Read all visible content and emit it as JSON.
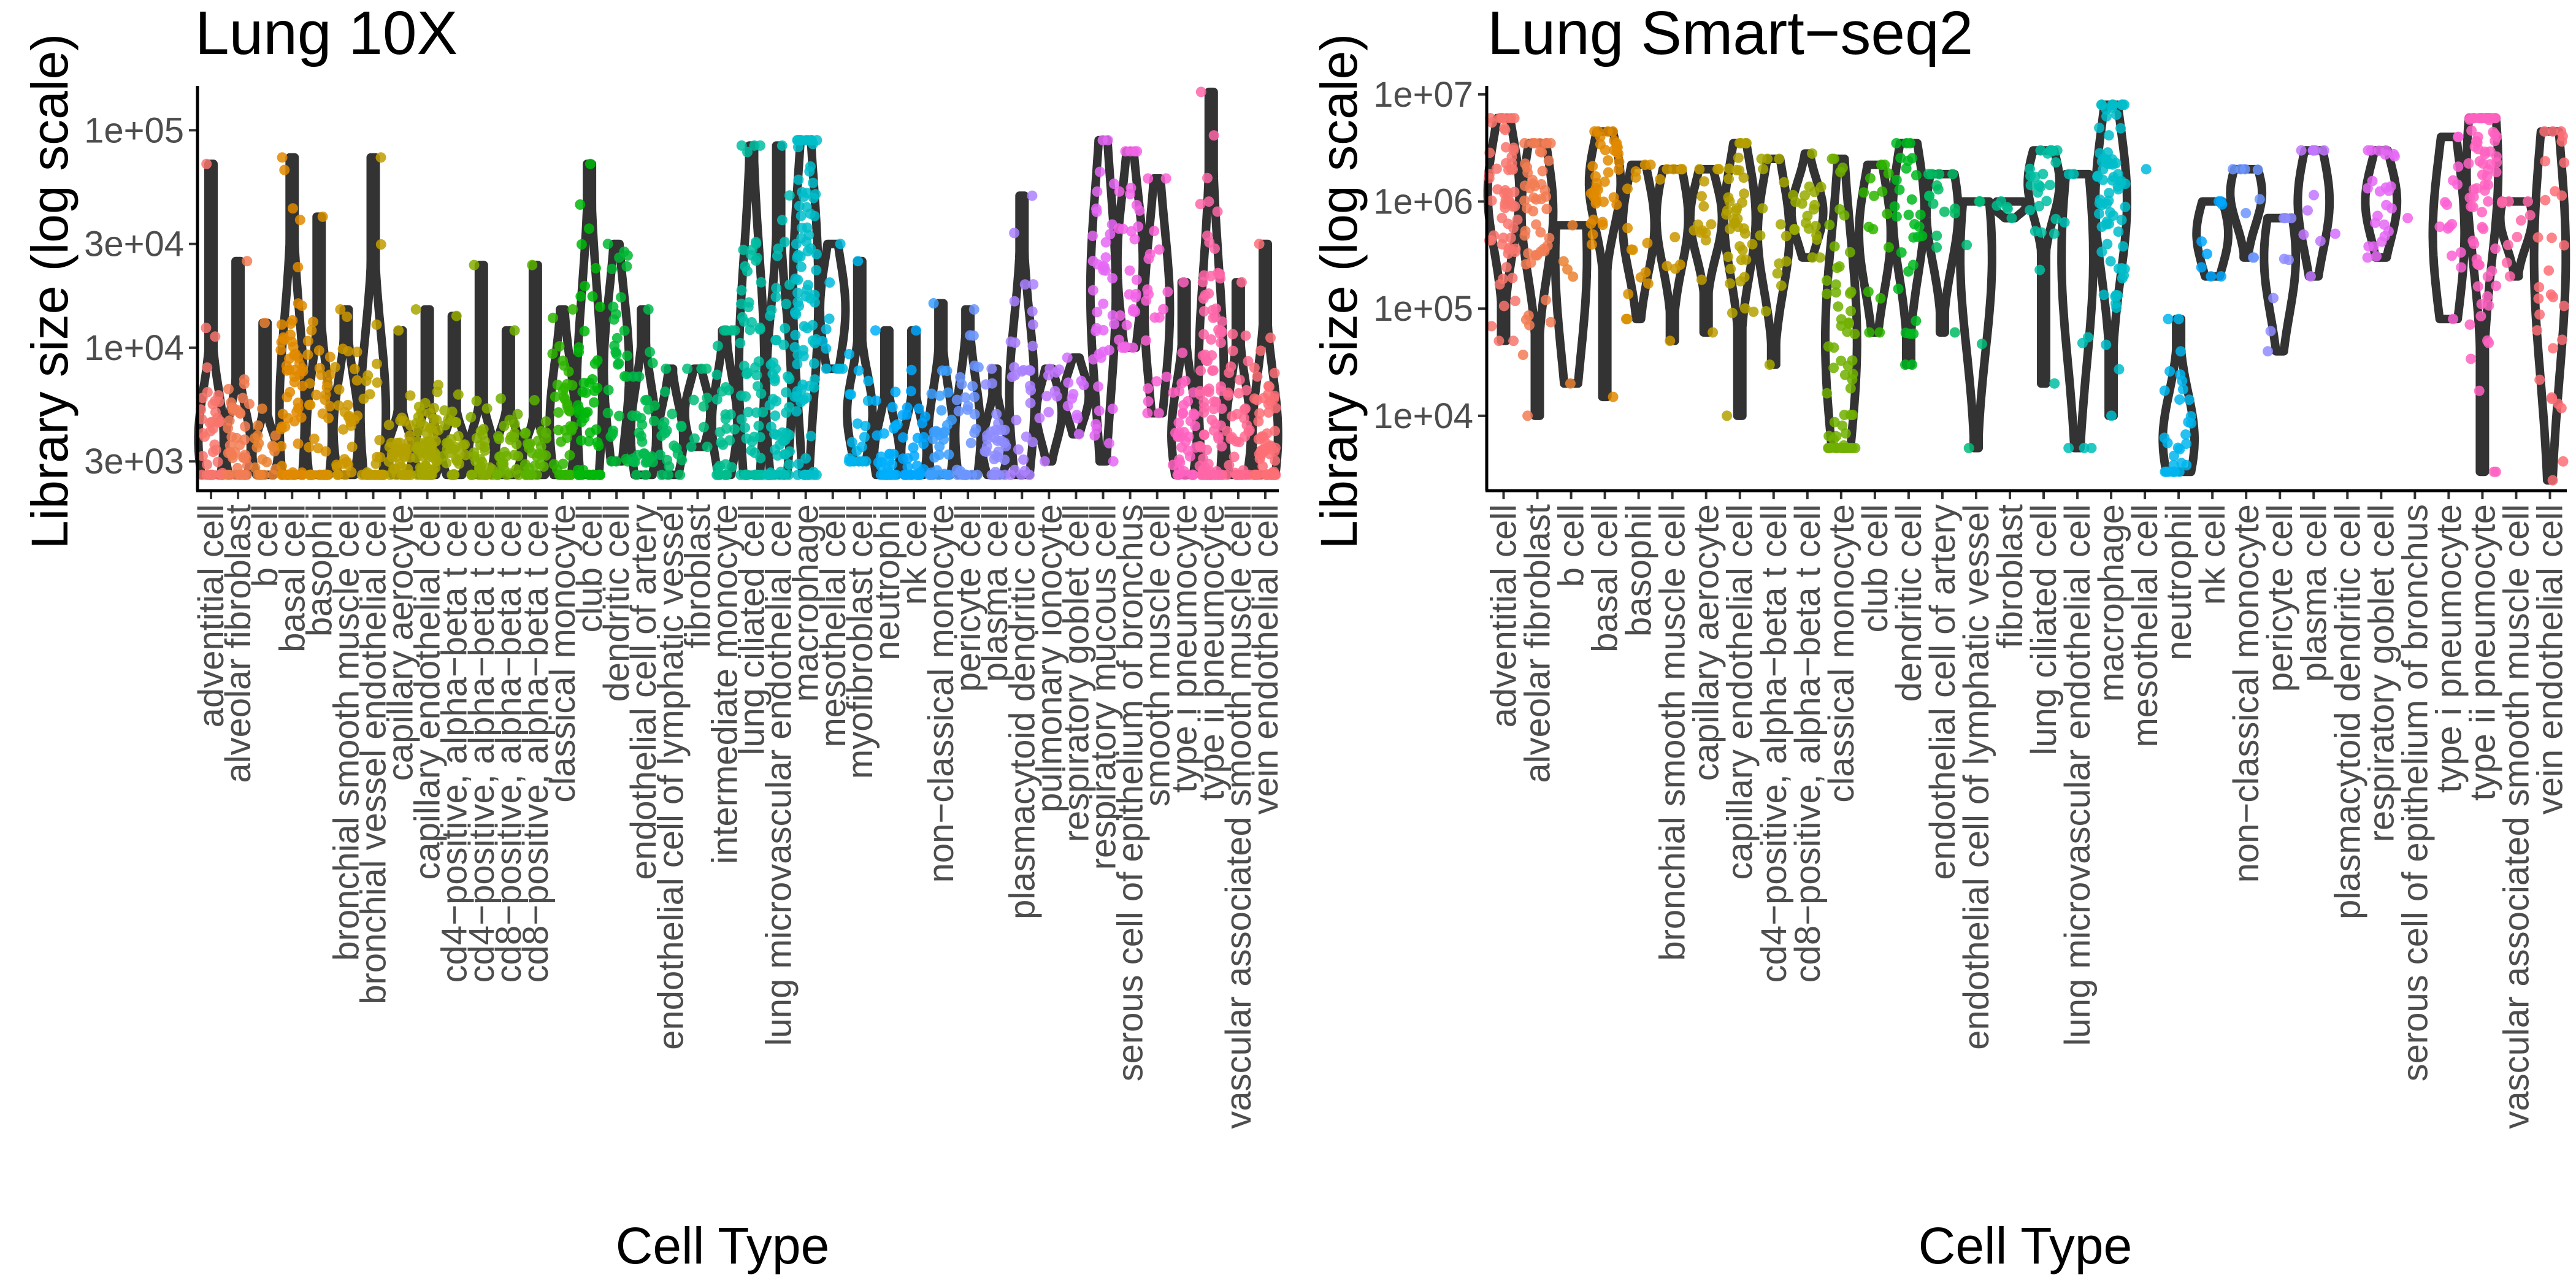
{
  "chart_data": [
    {
      "type": "violin",
      "title": "Lung 10X",
      "xlabel": "Cell Type",
      "ylabel": "Library size (log scale)",
      "yscale": "log",
      "ylim": [
        2200,
        160000
      ],
      "ytick_values": [
        3000,
        10000,
        30000,
        100000
      ],
      "ytick_labels": [
        "3e+03",
        "1e+04",
        "3e+04",
        "1e+05"
      ],
      "grid": false,
      "legend": "none",
      "categories": [
        {
          "name": "adventitial cell",
          "color": "#F8766D",
          "min": 2600,
          "q1": 3000,
          "median": 3800,
          "q3": 6000,
          "max": 70000,
          "n": 40
        },
        {
          "name": "alveolar fibroblast",
          "color": "#F27D53",
          "min": 2600,
          "q1": 3000,
          "median": 3500,
          "q3": 5000,
          "max": 25000,
          "n": 40
        },
        {
          "name": "b cell",
          "color": "#EA8331",
          "min": 2600,
          "q1": 2900,
          "median": 3200,
          "q3": 4000,
          "max": 13000,
          "n": 20
        },
        {
          "name": "basal cell",
          "color": "#E18A00",
          "min": 2600,
          "q1": 3200,
          "median": 5000,
          "q3": 12000,
          "max": 75000,
          "n": 60
        },
        {
          "name": "basophil",
          "color": "#D89000",
          "min": 2600,
          "q1": 3000,
          "median": 4000,
          "q3": 7000,
          "max": 40000,
          "n": 40
        },
        {
          "name": "bronchial smooth muscle cell",
          "color": "#CD9600",
          "min": 2600,
          "q1": 3000,
          "median": 4200,
          "q3": 6000,
          "max": 15000,
          "n": 30
        },
        {
          "name": "bronchial vessel endothelial cell",
          "color": "#C19C00",
          "min": 2600,
          "q1": 3200,
          "median": 5000,
          "q3": 10000,
          "max": 75000,
          "n": 30
        },
        {
          "name": "capillary aerocyte",
          "color": "#B4A100",
          "min": 2600,
          "q1": 2900,
          "median": 3300,
          "q3": 4000,
          "max": 12000,
          "n": 40
        },
        {
          "name": "capillary endothelial cell",
          "color": "#A6A600",
          "min": 2600,
          "q1": 2900,
          "median": 3300,
          "q3": 4200,
          "max": 15000,
          "n": 60
        },
        {
          "name": "cd4-positive, alpha-beta t cell",
          "color": "#96AA00",
          "min": 2600,
          "q1": 2900,
          "median": 3300,
          "q3": 4000,
          "max": 14000,
          "n": 30
        },
        {
          "name": "cd4-positive, alpha-beta t cell",
          "color": "#85AD00",
          "min": 2600,
          "q1": 2900,
          "median": 3300,
          "q3": 4200,
          "max": 24000,
          "n": 30
        },
        {
          "name": "cd8-positive, alpha-beta t cell",
          "color": "#70B000",
          "min": 2600,
          "q1": 2900,
          "median": 3300,
          "q3": 4000,
          "max": 12000,
          "n": 30
        },
        {
          "name": "cd8-positive, alpha-beta t cell",
          "color": "#58B300",
          "min": 2600,
          "q1": 2800,
          "median": 3100,
          "q3": 3800,
          "max": 24000,
          "n": 30
        },
        {
          "name": "classical monocyte",
          "color": "#2EB500",
          "min": 2600,
          "q1": 3000,
          "median": 4500,
          "q3": 7000,
          "max": 15000,
          "n": 40
        },
        {
          "name": "club cell",
          "color": "#00B70B",
          "min": 2600,
          "q1": 3500,
          "median": 6000,
          "q3": 15000,
          "max": 70000,
          "n": 50
        },
        {
          "name": "dendritic cell",
          "color": "#00B934",
          "min": 3000,
          "q1": 5000,
          "median": 8000,
          "q3": 14000,
          "max": 30000,
          "n": 30
        },
        {
          "name": "endothelial cell of artery",
          "color": "#00BA4C",
          "min": 2600,
          "q1": 3000,
          "median": 4000,
          "q3": 6000,
          "max": 15000,
          "n": 30
        },
        {
          "name": "endothelial cell of lymphatic vessel",
          "color": "#00BB62",
          "min": 2600,
          "q1": 3000,
          "median": 3800,
          "q3": 5000,
          "max": 8000,
          "n": 20
        },
        {
          "name": "fibroblast",
          "color": "#00BC78",
          "min": 3500,
          "q1": 4000,
          "median": 5000,
          "q3": 6000,
          "max": 8000,
          "n": 10
        },
        {
          "name": "intermediate monocyte",
          "color": "#00BD8D",
          "min": 2600,
          "q1": 3200,
          "median": 4500,
          "q3": 6000,
          "max": 12000,
          "n": 30
        },
        {
          "name": "lung ciliated cell",
          "color": "#00BEA2",
          "min": 2600,
          "q1": 4000,
          "median": 8000,
          "q3": 20000,
          "max": 85000,
          "n": 60
        },
        {
          "name": "lung microvascular endothelial cell",
          "color": "#00BFB6",
          "min": 2600,
          "q1": 3500,
          "median": 6000,
          "q3": 12000,
          "max": 85000,
          "n": 60
        },
        {
          "name": "macrophage",
          "color": "#00BDCA",
          "min": 2600,
          "q1": 7000,
          "median": 18000,
          "q3": 35000,
          "max": 90000,
          "n": 90
        },
        {
          "name": "mesothelial cell",
          "color": "#00BADD",
          "min": 8000,
          "q1": 10000,
          "median": 15000,
          "q3": 20000,
          "max": 30000,
          "n": 10
        },
        {
          "name": "myofibroblast cell",
          "color": "#00B5EE",
          "min": 3000,
          "q1": 4000,
          "median": 5000,
          "q3": 7000,
          "max": 25000,
          "n": 20
        },
        {
          "name": "neutrophil",
          "color": "#00AFFC",
          "min": 2600,
          "q1": 2800,
          "median": 3200,
          "q3": 4500,
          "max": 12000,
          "n": 30
        },
        {
          "name": "nk cell",
          "color": "#00A7FF",
          "min": 2600,
          "q1": 2900,
          "median": 3300,
          "q3": 4500,
          "max": 12000,
          "n": 30
        },
        {
          "name": "non-classical monocyte",
          "color": "#3C9FFF",
          "min": 2600,
          "q1": 3000,
          "median": 3800,
          "q3": 6000,
          "max": 16000,
          "n": 30
        },
        {
          "name": "pericyte cell",
          "color": "#6C96FF",
          "min": 2600,
          "q1": 3000,
          "median": 4000,
          "q3": 6500,
          "max": 15000,
          "n": 30
        },
        {
          "name": "plasma cell",
          "color": "#8E8CFF",
          "min": 2600,
          "q1": 3000,
          "median": 3500,
          "q3": 4500,
          "max": 8000,
          "n": 30
        },
        {
          "name": "plasmacytoid dendritic cell",
          "color": "#AA81FF",
          "min": 2600,
          "q1": 4000,
          "median": 6000,
          "q3": 12000,
          "max": 50000,
          "n": 30
        },
        {
          "name": "pulmonary ionocyte",
          "color": "#C177FF",
          "min": 3000,
          "q1": 4000,
          "median": 5000,
          "q3": 6000,
          "max": 8000,
          "n": 10
        },
        {
          "name": "respiratory goblet cell",
          "color": "#D46EFF",
          "min": 4000,
          "q1": 5000,
          "median": 6000,
          "q3": 7000,
          "max": 9000,
          "n": 10
        },
        {
          "name": "respiratory mucous cell",
          "color": "#E567F6",
          "min": 3000,
          "q1": 8000,
          "median": 18000,
          "q3": 35000,
          "max": 90000,
          "n": 40
        },
        {
          "name": "serous cell of epithelium of bronchus",
          "color": "#F264E8",
          "min": 10000,
          "q1": 15000,
          "median": 25000,
          "q3": 40000,
          "max": 80000,
          "n": 30
        },
        {
          "name": "smooth muscle cell",
          "color": "#FC61D5",
          "min": 5000,
          "q1": 8000,
          "median": 15000,
          "q3": 25000,
          "max": 60000,
          "n": 20
        },
        {
          "name": "type i pneumocyte",
          "color": "#FF62C1",
          "min": 2600,
          "q1": 3000,
          "median": 4000,
          "q3": 6000,
          "max": 20000,
          "n": 40
        },
        {
          "name": "type ii pneumocyte",
          "color": "#FF66A8",
          "min": 2600,
          "q1": 4000,
          "median": 7000,
          "q3": 20000,
          "max": 150000,
          "n": 90
        },
        {
          "name": "vascular associated smooth muscle cell",
          "color": "#FF6A90",
          "min": 2600,
          "q1": 3000,
          "median": 4000,
          "q3": 6000,
          "max": 20000,
          "n": 40
        },
        {
          "name": "vein endothelial cell",
          "color": "#FD6F75",
          "min": 2600,
          "q1": 3000,
          "median": 4000,
          "q3": 7000,
          "max": 30000,
          "n": 60
        }
      ]
    },
    {
      "type": "violin",
      "title": "Lung Smart−seq2",
      "xlabel": "Cell Type",
      "ylabel": "Library size (log scale)",
      "yscale": "log",
      "ylim": [
        2000,
        12000000
      ],
      "ytick_values": [
        10000,
        100000,
        1000000,
        10000000
      ],
      "ytick_labels": [
        "1e+04",
        "1e+05",
        "1e+06",
        "1e+07"
      ],
      "grid": false,
      "legend": "none",
      "categories": [
        {
          "name": "adventitial cell",
          "color": "#F8766D",
          "min": 50000,
          "q1": 500000,
          "median": 1200000,
          "q3": 2500000,
          "max": 6000000,
          "n": 60
        },
        {
          "name": "alveolar fibroblast",
          "color": "#F27D53",
          "min": 10000,
          "q1": 300000,
          "median": 800000,
          "q3": 1800000,
          "max": 3500000,
          "n": 50
        },
        {
          "name": "b cell",
          "color": "#EA8331",
          "min": 20000,
          "q1": 30000,
          "median": 300000,
          "q3": 500000,
          "max": 600000,
          "n": 5
        },
        {
          "name": "basal cell",
          "color": "#E18A00",
          "min": 15000,
          "q1": 700000,
          "median": 1500000,
          "q3": 2500000,
          "max": 4500000,
          "n": 40
        },
        {
          "name": "basophil",
          "color": "#D89000",
          "min": 80000,
          "q1": 300000,
          "median": 600000,
          "q3": 1200000,
          "max": 2200000,
          "n": 15
        },
        {
          "name": "bronchial smooth muscle cell",
          "color": "#CD9600",
          "min": 50000,
          "q1": 300000,
          "median": 700000,
          "q3": 1200000,
          "max": 2000000,
          "n": 10
        },
        {
          "name": "capillary aerocyte",
          "color": "#C19C00",
          "min": 60000,
          "q1": 400000,
          "median": 700000,
          "q3": 1200000,
          "max": 2000000,
          "n": 15
        },
        {
          "name": "capillary endothelial cell",
          "color": "#B4A100",
          "min": 10000,
          "q1": 300000,
          "median": 700000,
          "q3": 1500000,
          "max": 3500000,
          "n": 40
        },
        {
          "name": "cd4-positive, alpha-beta t cell",
          "color": "#A6A600",
          "min": 30000,
          "q1": 200000,
          "median": 500000,
          "q3": 1000000,
          "max": 2500000,
          "n": 15
        },
        {
          "name": "cd8-positive, alpha-beta t cell",
          "color": "#96AA00",
          "min": 300000,
          "q1": 500000,
          "median": 800000,
          "q3": 1200000,
          "max": 2800000,
          "n": 20
        },
        {
          "name": "classical monocyte",
          "color": "#70B000",
          "min": 5000,
          "q1": 15000,
          "median": 50000,
          "q3": 300000,
          "max": 2500000,
          "n": 60
        },
        {
          "name": "club cell",
          "color": "#2EB500",
          "min": 60000,
          "q1": 200000,
          "median": 500000,
          "q3": 1000000,
          "max": 2200000,
          "n": 15
        },
        {
          "name": "dendritic cell",
          "color": "#00B81F",
          "min": 30000,
          "q1": 300000,
          "median": 800000,
          "q3": 1800000,
          "max": 3500000,
          "n": 30
        },
        {
          "name": "endothelial cell of artery",
          "color": "#00BB62",
          "min": 60000,
          "q1": 300000,
          "median": 800000,
          "q3": 1300000,
          "max": 1800000,
          "n": 15
        },
        {
          "name": "endothelial cell of lymphatic vessel",
          "color": "#00BC78",
          "min": 5000,
          "q1": 50000,
          "median": 300000,
          "q3": 700000,
          "max": 1000000,
          "n": 5
        },
        {
          "name": "fibroblast",
          "color": "#00BD8D",
          "min": 700000,
          "q1": 800000,
          "median": 900000,
          "q3": 1000000,
          "max": 1000000,
          "n": 5
        },
        {
          "name": "lung ciliated cell",
          "color": "#00BEA2",
          "min": 20000,
          "q1": 800000,
          "median": 1500000,
          "q3": 2200000,
          "max": 3000000,
          "n": 25
        },
        {
          "name": "lung microvascular endothelial cell",
          "color": "#00BFB6",
          "min": 5000,
          "q1": 50000,
          "median": 300000,
          "q3": 1000000,
          "max": 1800000,
          "n": 8
        },
        {
          "name": "macrophage",
          "color": "#00BDCA",
          "min": 10000,
          "q1": 300000,
          "median": 1000000,
          "q3": 2500000,
          "max": 8000000,
          "n": 70
        },
        {
          "name": "mesothelial cell",
          "color": "#00BADD",
          "min": 2000000,
          "q1": 2000000,
          "median": 2000000,
          "q3": 2000000,
          "max": 2000000,
          "n": 1
        },
        {
          "name": "neutrophil",
          "color": "#00B5EE",
          "min": 3000,
          "q1": 4000,
          "median": 6000,
          "q3": 15000,
          "max": 80000,
          "n": 30
        },
        {
          "name": "nk cell",
          "color": "#00A7FF",
          "min": 200000,
          "q1": 300000,
          "median": 500000,
          "q3": 800000,
          "max": 1000000,
          "n": 8
        },
        {
          "name": "non-classical monocyte",
          "color": "#6C96FF",
          "min": 300000,
          "q1": 700000,
          "median": 1200000,
          "q3": 1700000,
          "max": 2000000,
          "n": 8
        },
        {
          "name": "pericyte cell",
          "color": "#8E8CFF",
          "min": 40000,
          "q1": 100000,
          "median": 300000,
          "q3": 500000,
          "max": 700000,
          "n": 8
        },
        {
          "name": "plasma cell",
          "color": "#C177FF",
          "min": 200000,
          "q1": 500000,
          "median": 1000000,
          "q3": 2000000,
          "max": 3000000,
          "n": 10
        },
        {
          "name": "plasmacytoid dendritic cell",
          "color": "#D46EFF",
          "min": 500000,
          "q1": 500000,
          "median": 500000,
          "q3": 500000,
          "max": 500000,
          "n": 1
        },
        {
          "name": "respiratory goblet cell",
          "color": "#E567F6",
          "min": 300000,
          "q1": 600000,
          "median": 1000000,
          "q3": 1800000,
          "max": 3000000,
          "n": 25
        },
        {
          "name": "serous cell of epithelium of bronchus",
          "color": "#F264E8",
          "min": 700000,
          "q1": 700000,
          "median": 700000,
          "q3": 700000,
          "max": 700000,
          "n": 1
        },
        {
          "name": "type i pneumocyte",
          "color": "#FC61D5",
          "min": 80000,
          "q1": 150000,
          "median": 500000,
          "q3": 1500000,
          "max": 4000000,
          "n": 15
        },
        {
          "name": "type ii pneumocyte",
          "color": "#FF62C1",
          "min": 3000,
          "q1": 300000,
          "median": 2000000,
          "q3": 4000000,
          "max": 6000000,
          "n": 80
        },
        {
          "name": "vascular associated smooth muscle cell",
          "color": "#FF66A8",
          "min": 200000,
          "q1": 400000,
          "median": 700000,
          "q3": 900000,
          "max": 1000000,
          "n": 10
        },
        {
          "name": "vein endothelial cell",
          "color": "#FD6F75",
          "min": 2500,
          "q1": 50000,
          "median": 300000,
          "q3": 1500000,
          "max": 4500000,
          "n": 30
        }
      ]
    }
  ]
}
